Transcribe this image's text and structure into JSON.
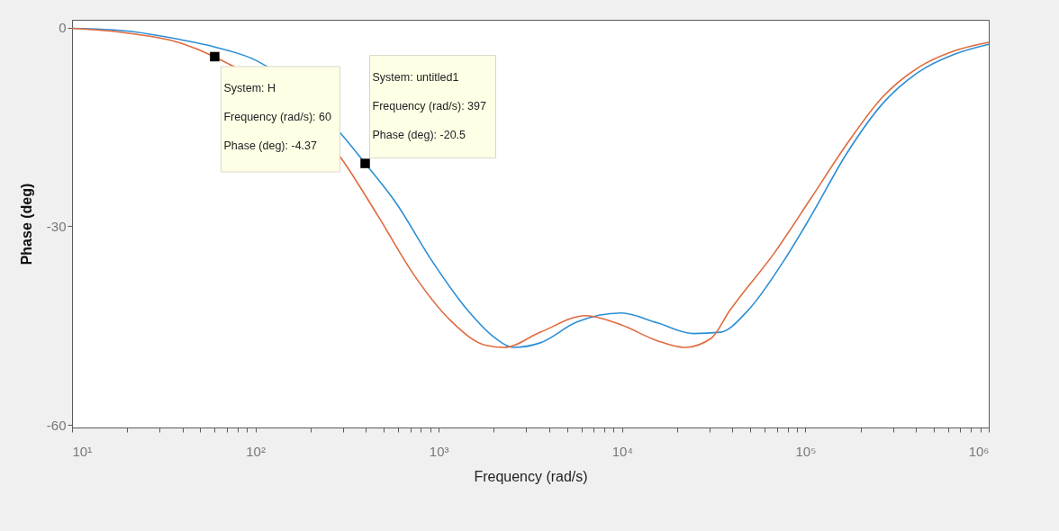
{
  "chart_data": {
    "type": "line",
    "xlabel": "Frequency  (rad/s)",
    "ylabel": "Phase (deg)",
    "log": "x",
    "grid": false,
    "xlim": [
      10,
      1000000
    ],
    "ylim": [
      -60.4,
      1.2
    ],
    "yticks": [
      -60,
      -30,
      0
    ],
    "xticks": [
      {
        "value": 10,
        "label": "10¹"
      },
      {
        "value": 20,
        "label": null
      },
      {
        "value": 30,
        "label": null
      },
      {
        "value": 40,
        "label": null
      },
      {
        "value": 50,
        "label": null
      },
      {
        "value": 60,
        "label": null
      },
      {
        "value": 70,
        "label": null
      },
      {
        "value": 80,
        "label": null
      },
      {
        "value": 90,
        "label": null
      },
      {
        "value": 100,
        "label": "10²"
      },
      {
        "value": 200,
        "label": null
      },
      {
        "value": 300,
        "label": null
      },
      {
        "value": 400,
        "label": null
      },
      {
        "value": 500,
        "label": null
      },
      {
        "value": 600,
        "label": null
      },
      {
        "value": 700,
        "label": null
      },
      {
        "value": 800,
        "label": null
      },
      {
        "value": 900,
        "label": null
      },
      {
        "value": 1000,
        "label": "10³"
      },
      {
        "value": 2000,
        "label": null
      },
      {
        "value": 3000,
        "label": null
      },
      {
        "value": 4000,
        "label": null
      },
      {
        "value": 5000,
        "label": null
      },
      {
        "value": 6000,
        "label": null
      },
      {
        "value": 7000,
        "label": null
      },
      {
        "value": 8000,
        "label": null
      },
      {
        "value": 9000,
        "label": null
      },
      {
        "value": 10000,
        "label": "10⁴"
      },
      {
        "value": 20000,
        "label": null
      },
      {
        "value": 30000,
        "label": null
      },
      {
        "value": 40000,
        "label": null
      },
      {
        "value": 50000,
        "label": null
      },
      {
        "value": 60000,
        "label": null
      },
      {
        "value": 70000,
        "label": null
      },
      {
        "value": 80000,
        "label": null
      },
      {
        "value": 90000,
        "label": null
      },
      {
        "value": 100000,
        "label": "10⁵"
      },
      {
        "value": 200000,
        "label": null
      },
      {
        "value": 300000,
        "label": null
      },
      {
        "value": 400000,
        "label": null
      },
      {
        "value": 500000,
        "label": null
      },
      {
        "value": 600000,
        "label": null
      },
      {
        "value": 700000,
        "label": null
      },
      {
        "value": 800000,
        "label": null
      },
      {
        "value": 900000,
        "label": null
      },
      {
        "value": 1000000,
        "label": "10⁶"
      }
    ],
    "series": [
      {
        "color": "#2b8fd6",
        "x": [
          10,
          20,
          39,
          60,
          102,
          297,
          397,
          586,
          922,
          1449,
          2034,
          2552,
          3584,
          5627,
          9910,
          15600,
          24500,
          34400,
          48300,
          75900,
          107000,
          168000,
          263000,
          414000,
          650000,
          1000000
        ],
        "values": [
          -0.1,
          -0.5,
          -1.8,
          -2.9,
          -5.0,
          -16.2,
          -20.5,
          -26.5,
          -35.3,
          -42.8,
          -46.9,
          -48.3,
          -47.6,
          -44.5,
          -43.1,
          -44.6,
          -46.2,
          -46.0,
          -42.8,
          -35.3,
          -28.5,
          -19.0,
          -11.5,
          -6.7,
          -4.0,
          -2.5
        ]
      },
      {
        "color": "#e06a3d",
        "x": [
          10,
          20,
          39,
          60,
          297,
          468,
          735,
          1156,
          1817,
          2278,
          3584,
          6310,
          9910,
          15600,
          21900,
          30700,
          38500,
          67800,
          107000,
          168000,
          263000,
          414000,
          650000,
          1000000
        ],
        "values": [
          -0.1,
          -0.8,
          -2.3,
          -4.4,
          -19.9,
          -28.5,
          -37.4,
          -44.2,
          -48.0,
          -48.3,
          -46.0,
          -43.5,
          -44.9,
          -47.3,
          -48.3,
          -46.9,
          -42.8,
          -34.0,
          -25.8,
          -17.6,
          -10.5,
          -6.0,
          -3.5,
          -2.2
        ]
      }
    ],
    "annotations": [
      "System: untitled1",
      "Frequency (rad/s): 397",
      {
        "text": "Phase (deg): -20.5",
        "x": 397,
        "y": -20.5
      },
      {
        "text": "System: H",
        "x": 60,
        "y": -4.37
      },
      "Frequency (rad/s): 60",
      "Phase (deg): -4.37"
    ]
  }
}
